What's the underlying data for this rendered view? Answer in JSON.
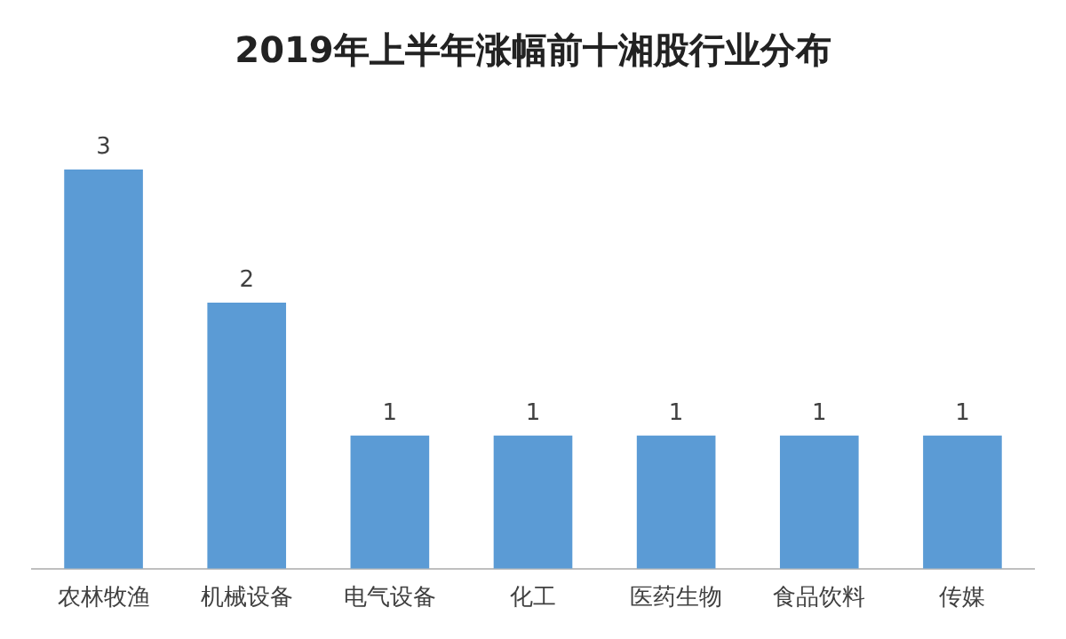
{
  "chart_data": {
    "type": "bar",
    "title": "2019年上半年涨幅前十湘股行业分布",
    "categories": [
      "农林牧渔",
      "机械设备",
      "电气设备",
      "化工",
      "医药生物",
      "食品饮料",
      "传媒"
    ],
    "values": [
      3,
      2,
      1,
      1,
      1,
      1,
      1
    ],
    "color": "#5b9bd5",
    "data_labels": true,
    "grid": false,
    "legend": false
  }
}
